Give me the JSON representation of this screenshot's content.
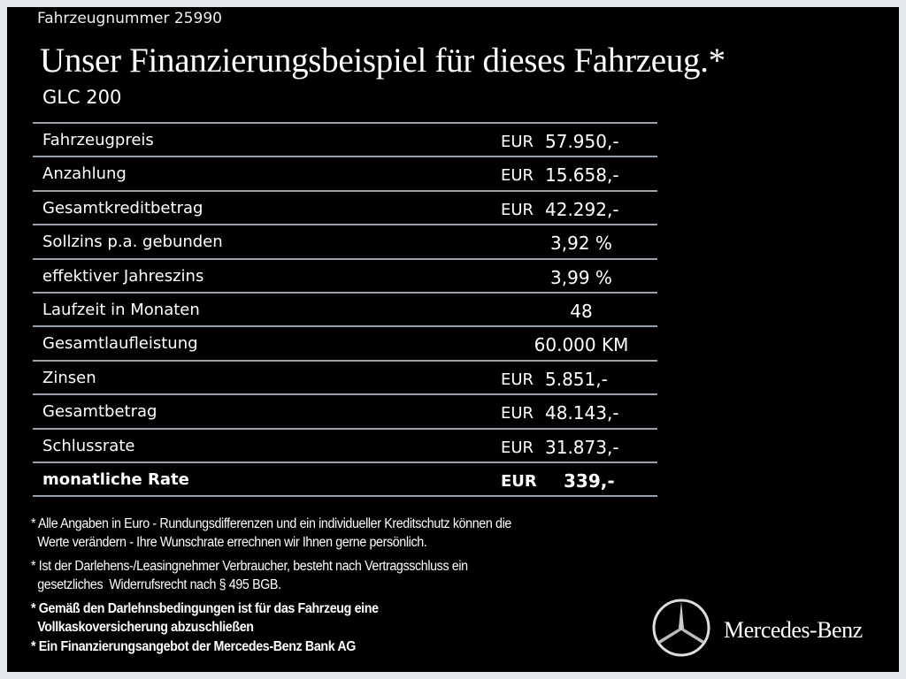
{
  "header": {
    "vehicle_number": "Fahrzeugnummer  25990",
    "title": "Unser Finanzierungsbeispiel für dieses Fahrzeug.*",
    "model": "GLC 200"
  },
  "rows": [
    {
      "label": "Fahrzeugpreis",
      "currency": "EUR",
      "value": "57.950,-"
    },
    {
      "label": "Anzahlung",
      "currency": "EUR",
      "value": "15.658,-"
    },
    {
      "label": "Gesamtkreditbetrag",
      "currency": "EUR",
      "value": "42.292,-"
    },
    {
      "label": "Sollzins p.a. gebunden",
      "value": "3,92 %"
    },
    {
      "label": "effektiver Jahreszins",
      "value": "3,99 %"
    },
    {
      "label": "Laufzeit in Monaten",
      "value": "48"
    },
    {
      "label": "Gesamtlaufleistung",
      "value": "60.000 KM"
    },
    {
      "label": "Zinsen",
      "currency": "EUR",
      "value": "5.851,-"
    },
    {
      "label": "Gesamtbetrag",
      "currency": "EUR",
      "value": "48.143,-"
    },
    {
      "label": "Schlussrate",
      "currency": "EUR",
      "value": "31.873,-"
    },
    {
      "label": "monatliche Rate",
      "currency": "EUR",
      "value": "339,-"
    }
  ],
  "notes": [
    [
      "* Alle Angaben in Euro - Rundungsdifferenzen und ein individueller Kreditschutz können die",
      "  Werte verändern - Ihre Wunschrate errechnen wir Ihnen gerne persönlich."
    ],
    [
      "* Ist der Darlehens-/Leasingnehmer Verbraucher, besteht nach Vertragsschluss ein",
      "  gesetzliches  Widerrufsrecht nach § 495 BGB."
    ],
    [
      "* Gemäß den Darlehnsbedingungen ist für das Fahrzeug eine",
      "  Vollkaskoversicherung abzuschließen"
    ],
    [
      "* Ein Finanzierungsangebot der Mercedes-Benz Bank AG"
    ]
  ],
  "brand": {
    "name": "Mercedes-Benz",
    "icon": "three-pointed-star-icon"
  }
}
